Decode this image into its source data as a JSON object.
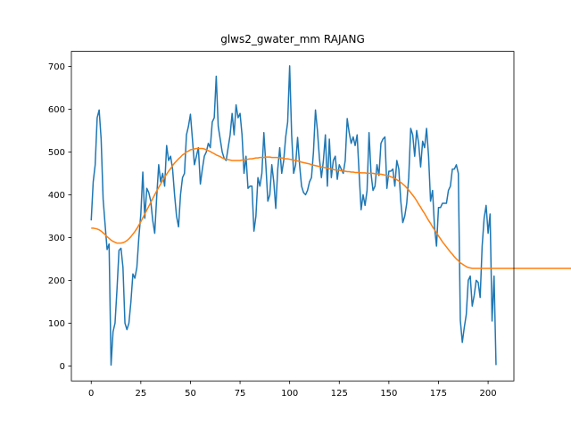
{
  "chart_data": {
    "type": "line",
    "title": "glws2_gwater_mm RAJANG",
    "xlabel": "",
    "ylabel": "",
    "xlim": [
      -10,
      213
    ],
    "ylim": [
      -35,
      735
    ],
    "xticks": [
      0,
      25,
      50,
      75,
      100,
      125,
      150,
      175,
      200
    ],
    "yticks": [
      0,
      100,
      200,
      300,
      400,
      500,
      600,
      700
    ],
    "grid": false,
    "series": [
      {
        "color": "#1f77b4",
        "values": [
          340,
          430,
          470,
          580,
          598,
          530,
          390,
          330,
          272,
          285,
          2,
          80,
          100,
          180,
          270,
          275,
          230,
          100,
          85,
          100,
          150,
          215,
          205,
          230,
          300,
          355,
          453,
          345,
          415,
          405,
          385,
          340,
          310,
          395,
          470,
          430,
          450,
          420,
          515,
          480,
          490,
          460,
          400,
          350,
          325,
          400,
          440,
          450,
          540,
          560,
          588,
          530,
          470,
          490,
          510,
          425,
          460,
          490,
          500,
          520,
          510,
          570,
          580,
          677,
          560,
          530,
          500,
          485,
          480,
          510,
          540,
          590,
          540,
          610,
          580,
          590,
          540,
          450,
          490,
          415,
          420,
          420,
          315,
          350,
          440,
          420,
          450,
          545,
          470,
          385,
          400,
          470,
          430,
          368,
          460,
          510,
          450,
          480,
          535,
          570,
          701,
          540,
          450,
          470,
          534,
          470,
          420,
          405,
          400,
          410,
          430,
          440,
          500,
          598,
          550,
          485,
          440,
          480,
          540,
          420,
          530,
          440,
          480,
          490,
          436,
          470,
          460,
          450,
          480,
          578,
          545,
          520,
          535,
          515,
          540,
          450,
          365,
          400,
          375,
          410,
          545,
          450,
          410,
          420,
          470,
          445,
          520,
          530,
          535,
          415,
          455,
          455,
          460,
          420,
          480,
          460,
          385,
          335,
          350,
          380,
          440,
          555,
          540,
          490,
          550,
          520,
          465,
          525,
          510,
          555,
          490,
          385,
          410,
          325,
          280,
          370,
          370,
          380,
          380,
          380,
          410,
          420,
          460,
          460,
          470,
          450,
          107,
          55,
          90,
          120,
          200,
          210,
          140,
          165,
          200,
          195,
          160,
          280,
          345,
          375,
          310,
          355,
          105,
          210,
          2
        ]
      },
      {
        "color": "#ff7f0e",
        "values": [
          322,
          322,
          321,
          320,
          318,
          315,
          311,
          307,
          302,
          298,
          294,
          291,
          289,
          287,
          287,
          287,
          288,
          290,
          293,
          297,
          302,
          308,
          314,
          321,
          329,
          337,
          346,
          355,
          364,
          373,
          382,
          391,
          400,
          409,
          417,
          425,
          433,
          441,
          448,
          455,
          461,
          468,
          474,
          479,
          484,
          488,
          493,
          496,
          500,
          502,
          505,
          506,
          507,
          508,
          508,
          508,
          508,
          507,
          505,
          503,
          501,
          498,
          496,
          493,
          491,
          489,
          486,
          484,
          483,
          482,
          481,
          480,
          480,
          480,
          480,
          480,
          481,
          481,
          482,
          483,
          484,
          484,
          485,
          486,
          486,
          487,
          487,
          487,
          488,
          488,
          488,
          487,
          487,
          487,
          487,
          486,
          486,
          485,
          484,
          484,
          483,
          482,
          481,
          480,
          479,
          478,
          476,
          475,
          474,
          473,
          472,
          470,
          469,
          468,
          467,
          466,
          465,
          464,
          463,
          462,
          461,
          460,
          459,
          458,
          458,
          457,
          456,
          455,
          455,
          454,
          454,
          453,
          453,
          452,
          452,
          452,
          451,
          451,
          451,
          450,
          450,
          450,
          450,
          449,
          449,
          448,
          448,
          447,
          446,
          445,
          444,
          442,
          440,
          438,
          435,
          432,
          429,
          425,
          421,
          416,
          411,
          405,
          399,
          393,
          386,
          378,
          371,
          363,
          356,
          348,
          340,
          333,
          325,
          318,
          311,
          304,
          297,
          290,
          284,
          278,
          272,
          266,
          261,
          255,
          250,
          246,
          241,
          238,
          235,
          232,
          230,
          229,
          228,
          228,
          228,
          228,
          228,
          228,
          228,
          228,
          228,
          228,
          228,
          228,
          228,
          228,
          228,
          228,
          228,
          228,
          228,
          228,
          228,
          228,
          228,
          228,
          228,
          228,
          228,
          228,
          228,
          228,
          228,
          228,
          228,
          228,
          228,
          228,
          228,
          228,
          228,
          228,
          228,
          228,
          228,
          228,
          228,
          228,
          228,
          228,
          228,
          228,
          228,
          228,
          228,
          228,
          228,
          228,
          228,
          228,
          228,
          228,
          228,
          228
        ]
      }
    ]
  }
}
